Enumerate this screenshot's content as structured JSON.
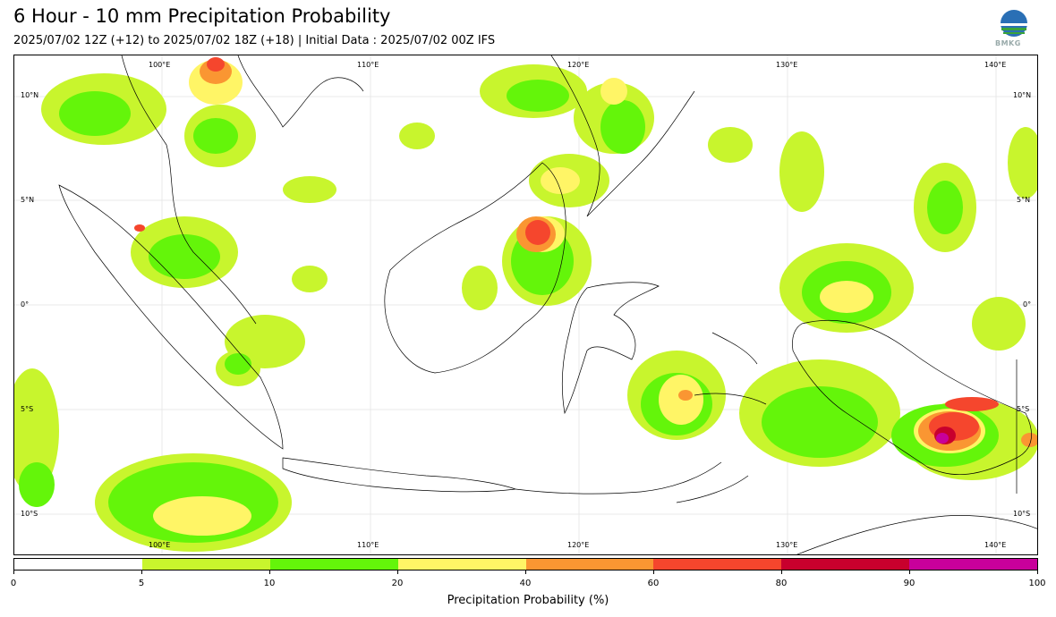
{
  "header": {
    "title": "6 Hour - 10 mm Precipitation Probability",
    "subtitle": "2025/07/02 12Z (+12) to 2025/07/02 18Z (+18) | Initial Data : 2025/07/02 00Z IFS",
    "logo_text": "BMKG"
  },
  "map": {
    "lon_labels": [
      "100°E",
      "110°E",
      "120°E",
      "130°E",
      "140°E"
    ],
    "lat_labels": [
      "10°N",
      "5°N",
      "0°",
      "5°S",
      "10°S"
    ]
  },
  "colorbar": {
    "label": "Precipitation Probability (%)",
    "ticks": [
      "0",
      "5",
      "10",
      "20",
      "40",
      "60",
      "80",
      "90",
      "100"
    ],
    "colors": [
      "#ffffff",
      "#c8f52d",
      "#64f50a",
      "#fff566",
      "#fa9632",
      "#f5462d",
      "#c8002d",
      "#c8009b"
    ]
  }
}
